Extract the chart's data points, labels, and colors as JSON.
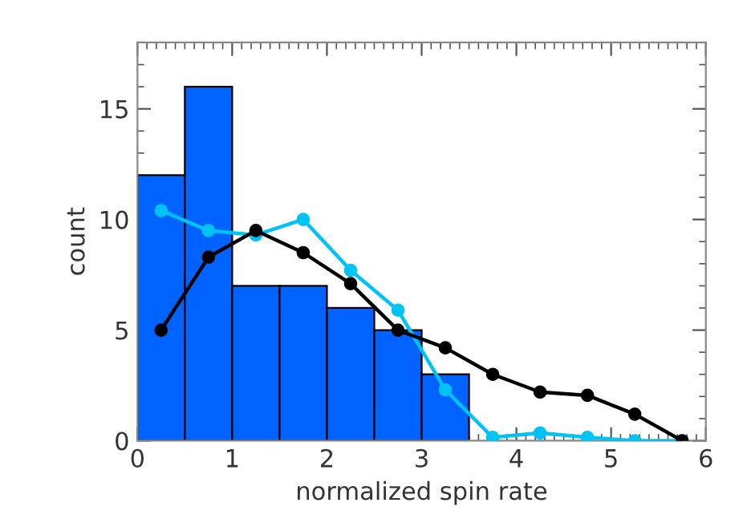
{
  "chart_data": {
    "type": "histogram",
    "xlabel": "normalized spin rate",
    "ylabel": "count",
    "bins": [
      0,
      0.5,
      1,
      1.5,
      2,
      2.5,
      3,
      3.5
    ],
    "values": [
      12,
      16,
      7,
      7,
      6,
      5,
      3
    ],
    "color": "#0062ff",
    "series": [
      {
        "type": "line",
        "color": "#000000",
        "marker": "circle",
        "x": [
          0.25,
          0.75,
          1.25,
          1.75,
          2.25,
          2.75,
          3.25,
          3.75,
          4.25,
          4.75,
          5.25,
          5.75
        ],
        "values": [
          5.0,
          8.3,
          9.5,
          8.5,
          7.1,
          5.0,
          4.2,
          3.0,
          2.2,
          2.05,
          1.2,
          0.0
        ]
      },
      {
        "type": "line",
        "color": "#00c3f5",
        "marker": "circle",
        "x": [
          0.25,
          0.75,
          1.25,
          1.75,
          2.25,
          2.75,
          3.25,
          3.75,
          4.25,
          4.75,
          5.25,
          5.75
        ],
        "values": [
          10.4,
          9.5,
          9.3,
          10.0,
          7.7,
          5.9,
          2.3,
          0.15,
          0.35,
          0.15,
          0.0,
          0.0
        ]
      }
    ],
    "xlim": [
      0,
      6
    ],
    "ylim": [
      0,
      18
    ],
    "xticks": [
      0,
      1,
      2,
      3,
      4,
      5,
      6
    ],
    "yticks": [
      0,
      5,
      10,
      15
    ],
    "grid": false,
    "legend": false
  }
}
